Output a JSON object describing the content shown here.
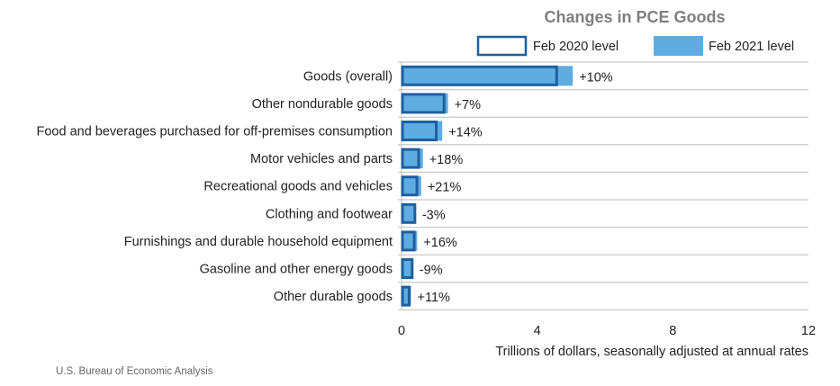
{
  "chart_data": {
    "type": "bar",
    "orientation": "horizontal",
    "title": "Changes in PCE Goods",
    "xlabel": "Trillions of dollars, seasonally adjusted at annual rates",
    "xlim": [
      0,
      12
    ],
    "xticks": [
      "0",
      "4",
      "8",
      "12"
    ],
    "grid": "horizontal row separators",
    "legend_placement": "top",
    "categories": [
      "Goods (overall)",
      "Other nondurable goods",
      "Food and beverages purchased for off-premises consumption",
      "Motor vehicles and parts",
      "Recreational goods and vehicles",
      "Clothing and footwear",
      "Furnishings and durable household equipment",
      "Gasoline and other energy goods",
      "Other durable goods"
    ],
    "series": [
      {
        "name": "Feb 2020 level",
        "values": [
          4.6,
          1.28,
          1.05,
          0.53,
          0.48,
          0.42,
          0.4,
          0.34,
          0.25
        ],
        "color": "#1f5f9e",
        "style": "outline"
      },
      {
        "name": "Feb 2021 level",
        "values": [
          5.05,
          1.37,
          1.2,
          0.63,
          0.58,
          0.41,
          0.46,
          0.31,
          0.28
        ],
        "color": "#5dade2",
        "style": "filled"
      }
    ],
    "data_labels": [
      "+10%",
      "+7%",
      "+14%",
      "+18%",
      "+21%",
      "-3%",
      "+16%",
      "-9%",
      "+11%"
    ]
  },
  "source": "U.S. Bureau of Economic Analysis"
}
